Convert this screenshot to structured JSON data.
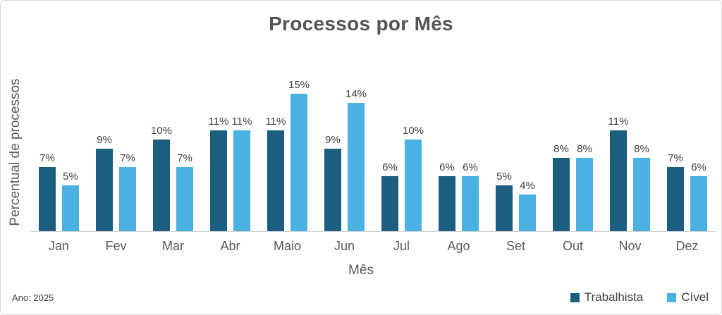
{
  "title": "Processos por Mês",
  "footnote": "Ano: 2025",
  "chart_data": {
    "type": "bar",
    "title": "Processos por Mês",
    "xlabel": "Mês",
    "ylabel": "Percentual de processos",
    "categories": [
      "Jan",
      "Fev",
      "Mar",
      "Abr",
      "Maio",
      "Jun",
      "Jul",
      "Ago",
      "Set",
      "Out",
      "Nov",
      "Dez"
    ],
    "series": [
      {
        "name": "Trabalhista",
        "color": "#1B5E80",
        "values": [
          7,
          9,
          10,
          11,
          11,
          9,
          6,
          6,
          5,
          8,
          11,
          7
        ]
      },
      {
        "name": "Cível",
        "color": "#4AB2E2",
        "values": [
          5,
          7,
          7,
          11,
          15,
          14,
          10,
          6,
          4,
          8,
          8,
          6
        ]
      }
    ],
    "value_suffix": "%",
    "data_labels": true,
    "ylim": [
      0,
      16
    ],
    "grid": false,
    "y_tick_labels": [],
    "legend_position": "bottom-right",
    "colors": {
      "axis_line": "#d2d2d2",
      "title_text": "#545454",
      "label_text": "#3f3f3f",
      "tick_text": "#595959"
    }
  }
}
